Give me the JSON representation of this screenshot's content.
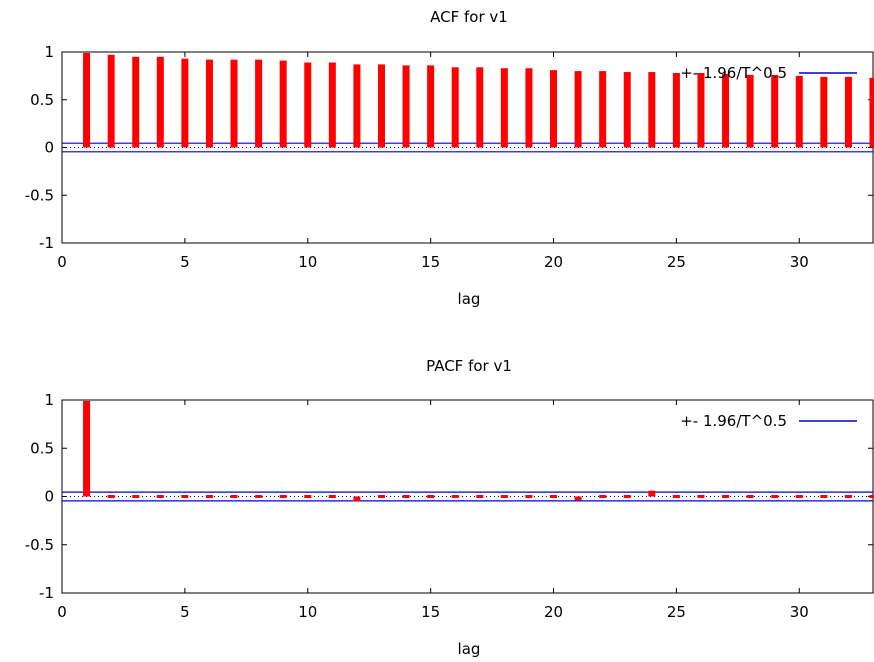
{
  "chart_data": [
    {
      "type": "bar",
      "title": "ACF for v1",
      "xlabel": "lag",
      "ylabel": "",
      "xlim": [
        0,
        33
      ],
      "ylim": [
        -1,
        1
      ],
      "xticks": [
        "0",
        "5",
        "10",
        "15",
        "20",
        "25",
        "30"
      ],
      "yticks": [
        "1",
        "0.5",
        "0",
        "-0.5",
        "-1"
      ],
      "legend": "+- 1.96/T^0.5",
      "legend_position": "top-right",
      "confidence_band": 0.045,
      "bar_color": "#ff0000",
      "band_color": "#0000cc",
      "lags": [
        1,
        2,
        3,
        4,
        5,
        6,
        7,
        8,
        9,
        10,
        11,
        12,
        13,
        14,
        15,
        16,
        17,
        18,
        19,
        20,
        21,
        22,
        23,
        24,
        25,
        26,
        27,
        28,
        29,
        30,
        31,
        32,
        33
      ],
      "values": [
        0.99,
        0.97,
        0.95,
        0.95,
        0.93,
        0.92,
        0.92,
        0.92,
        0.91,
        0.89,
        0.89,
        0.87,
        0.87,
        0.86,
        0.86,
        0.84,
        0.84,
        0.83,
        0.83,
        0.81,
        0.8,
        0.8,
        0.79,
        0.79,
        0.78,
        0.78,
        0.77,
        0.76,
        0.76,
        0.75,
        0.74,
        0.74,
        0.73
      ]
    },
    {
      "type": "bar",
      "title": "PACF for v1",
      "xlabel": "lag",
      "ylabel": "",
      "xlim": [
        0,
        33
      ],
      "ylim": [
        -1,
        1
      ],
      "xticks": [
        "0",
        "5",
        "10",
        "15",
        "20",
        "25",
        "30"
      ],
      "yticks": [
        "1",
        "0.5",
        "0",
        "-0.5",
        "-1"
      ],
      "legend": "+- 1.96/T^0.5",
      "legend_position": "top-right",
      "confidence_band": 0.045,
      "bar_color": "#ff0000",
      "band_color": "#0000cc",
      "lags": [
        1,
        2,
        3,
        4,
        5,
        6,
        7,
        8,
        9,
        10,
        11,
        12,
        13,
        14,
        15,
        16,
        17,
        18,
        19,
        20,
        21,
        22,
        23,
        24,
        25,
        26,
        27,
        28,
        29,
        30,
        31,
        32,
        33
      ],
      "values": [
        0.99,
        0.03,
        -0.01,
        0.01,
        0.03,
        -0.01,
        0.03,
        -0.01,
        -0.03,
        0.01,
        0.03,
        -0.05,
        -0.03,
        0.01,
        -0.01,
        0.01,
        0.01,
        -0.03,
        -0.03,
        0.01,
        -0.04,
        0.01,
        0.01,
        0.06,
        0.01,
        0.01,
        0.01,
        0.01,
        0.01,
        0.03,
        0.01,
        0.01,
        0.01
      ]
    }
  ]
}
